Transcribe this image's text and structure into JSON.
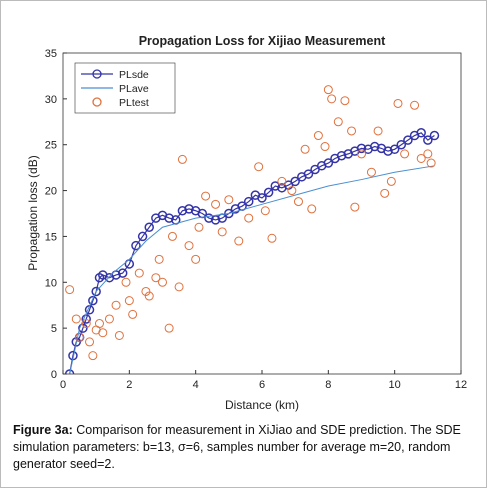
{
  "chart_data": {
    "type": "scatter",
    "title": "Propagation Loss for Xijiao Measurement",
    "xlabel": "Distance (km)",
    "ylabel": "Propagation loss (dB)",
    "xlim": [
      0,
      12
    ],
    "ylim": [
      0,
      35
    ],
    "xticks": [
      0,
      2,
      4,
      6,
      8,
      10,
      12
    ],
    "yticks": [
      0,
      5,
      10,
      15,
      20,
      25,
      30,
      35
    ],
    "legend": "upper left",
    "series": [
      {
        "name": "PLsde",
        "color": "#3434a8",
        "style": "line-markers",
        "x": [
          0.2,
          0.3,
          0.4,
          0.5,
          0.6,
          0.7,
          0.8,
          0.9,
          1.0,
          1.1,
          1.2,
          1.4,
          1.6,
          1.8,
          2.0,
          2.2,
          2.4,
          2.6,
          2.8,
          3.0,
          3.2,
          3.4,
          3.6,
          3.8,
          4.0,
          4.2,
          4.4,
          4.6,
          4.8,
          5.0,
          5.2,
          5.4,
          5.6,
          5.8,
          6.0,
          6.2,
          6.4,
          6.6,
          6.8,
          7.0,
          7.2,
          7.4,
          7.6,
          7.8,
          8.0,
          8.2,
          8.4,
          8.6,
          8.8,
          9.0,
          9.2,
          9.4,
          9.6,
          9.8,
          10.0,
          10.2,
          10.4,
          10.6,
          10.8,
          11.0,
          11.2
        ],
        "values": [
          0,
          2,
          3.5,
          4,
          5,
          6,
          7,
          8,
          9,
          10.5,
          10.8,
          10.5,
          10.8,
          11,
          12,
          14,
          15,
          16,
          17,
          17.3,
          17,
          16.8,
          17.8,
          18,
          17.8,
          17.5,
          17,
          16.8,
          17,
          17.5,
          18,
          18.3,
          18.8,
          19.5,
          19.2,
          19.8,
          20.5,
          20.3,
          20.6,
          21,
          21.5,
          21.8,
          22.3,
          22.7,
          23,
          23.5,
          23.8,
          24,
          24.3,
          24.6,
          24.5,
          24.8,
          24.6,
          24.3,
          24.5,
          25,
          25.5,
          26,
          26.3,
          25.5,
          26
        ]
      },
      {
        "name": "PLave",
        "color": "#4a8fd0",
        "style": "line",
        "x": [
          0.2,
          0.5,
          1,
          1.5,
          2,
          2.5,
          3,
          4,
          5,
          6,
          7,
          8,
          9,
          10,
          11.2
        ],
        "values": [
          0,
          5,
          9,
          11,
          12.5,
          14.5,
          16,
          17,
          17.5,
          18.5,
          19.5,
          20.5,
          21.2,
          22,
          22.7
        ]
      },
      {
        "name": "PLtest",
        "color": "#e0703c",
        "style": "markers",
        "x": [
          0.2,
          0.4,
          0.5,
          0.7,
          0.8,
          0.9,
          1.0,
          1.1,
          1.2,
          1.4,
          1.6,
          1.7,
          1.9,
          2.0,
          2.1,
          2.3,
          2.5,
          2.6,
          2.8,
          2.9,
          3.0,
          3.2,
          3.3,
          3.5,
          3.6,
          3.8,
          4.0,
          4.1,
          4.3,
          4.6,
          4.8,
          5.0,
          5.3,
          5.6,
          5.9,
          6.1,
          6.3,
          6.6,
          6.9,
          7.1,
          7.3,
          7.5,
          7.7,
          7.9,
          8.0,
          8.1,
          8.3,
          8.5,
          8.7,
          8.8,
          9.0,
          9.3,
          9.5,
          9.7,
          9.9,
          10.1,
          10.3,
          10.6,
          10.8,
          11.0,
          11.1
        ],
        "values": [
          9.2,
          6,
          4,
          5.5,
          3.5,
          2,
          4.8,
          5.5,
          4.5,
          6,
          7.5,
          4.2,
          10,
          8,
          6.5,
          11,
          9,
          8.5,
          10.5,
          12.5,
          10,
          5,
          15,
          9.5,
          23.4,
          14,
          12.5,
          16,
          19.4,
          18.5,
          15.5,
          19,
          14.5,
          17,
          22.6,
          17.8,
          14.8,
          21,
          20,
          18.8,
          24.5,
          18,
          26,
          24.8,
          31,
          30,
          27.5,
          29.8,
          26.5,
          18.2,
          24,
          22,
          26.5,
          19.7,
          21,
          29.5,
          24,
          29.3,
          23.5,
          24,
          23
        ]
      }
    ]
  },
  "caption": {
    "label": "Figure 3a:",
    "text": " Comparison for measurement in XiJiao and SDE prediction. The SDE simulation parameters: b=13, σ=6, samples number for average m=20, random generator seed=2."
  }
}
